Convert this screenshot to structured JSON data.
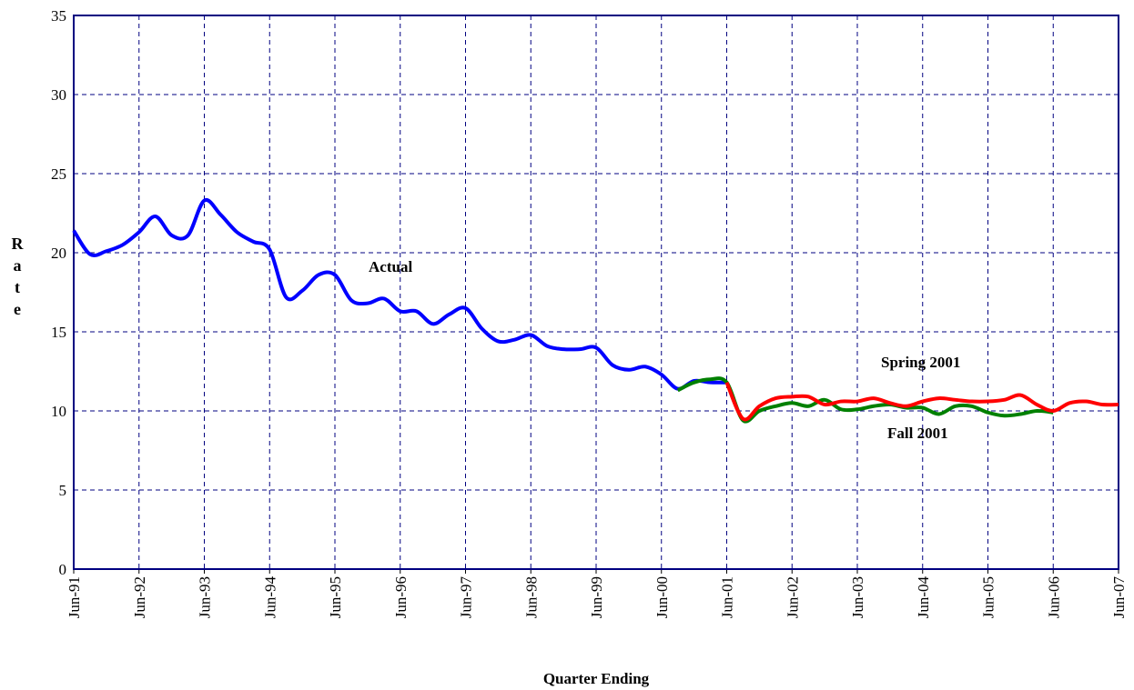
{
  "chart_data": {
    "type": "line",
    "xlabel": "Quarter Ending",
    "ylabel": "Rate",
    "categories": [
      "Jun-91",
      null,
      null,
      null,
      "Jun-92",
      null,
      null,
      null,
      "Jun-93",
      null,
      null,
      null,
      "Jun-94",
      null,
      null,
      null,
      "Jun-95",
      null,
      null,
      null,
      "Jun-96",
      null,
      null,
      null,
      "Jun-97",
      null,
      null,
      null,
      "Jun-98",
      null,
      null,
      null,
      "Jun-99",
      null,
      null,
      null,
      "Jun-00",
      null,
      null,
      null,
      "Jun-01",
      null,
      null,
      null,
      "Jun-02",
      null,
      null,
      null,
      "Jun-03",
      null,
      null,
      null,
      "Jun-04",
      null,
      null,
      null,
      "Jun-05",
      null,
      null,
      null,
      "Jun-06",
      null,
      null,
      null,
      "Jun-07"
    ],
    "series": [
      {
        "name": "Actual",
        "color": "#0000ff",
        "values": [
          21.4,
          19.9,
          20.1,
          20.5,
          21.3,
          22.3,
          21.1,
          21.1,
          23.3,
          22.4,
          21.3,
          20.7,
          20.2,
          17.2,
          17.6,
          18.6,
          18.6,
          17.0,
          16.8,
          17.1,
          16.3,
          16.3,
          15.5,
          16.1,
          16.5,
          15.2,
          14.4,
          14.5,
          14.8,
          14.1,
          13.9,
          13.9,
          14.0,
          12.9,
          12.6,
          12.8,
          12.3,
          11.4,
          11.9,
          11.8,
          11.8,
          null,
          null,
          null,
          null,
          null,
          null,
          null,
          null,
          null,
          null,
          null,
          null,
          null,
          null,
          null,
          null,
          null,
          null,
          null,
          null,
          null,
          null,
          null,
          null
        ]
      },
      {
        "name": "Spring 2001",
        "color": "#008000",
        "values": [
          null,
          null,
          null,
          null,
          null,
          null,
          null,
          null,
          null,
          null,
          null,
          null,
          null,
          null,
          null,
          null,
          null,
          null,
          null,
          null,
          null,
          null,
          null,
          null,
          null,
          null,
          null,
          null,
          null,
          null,
          null,
          null,
          null,
          null,
          null,
          null,
          null,
          11.3,
          11.8,
          12.0,
          11.8,
          9.4,
          10.0,
          10.3,
          10.5,
          10.3,
          10.7,
          10.1,
          10.1,
          10.3,
          10.4,
          10.2,
          10.2,
          9.8,
          10.3,
          10.3,
          9.9,
          9.7,
          9.8,
          10.0,
          9.9,
          null,
          null,
          null,
          null
        ]
      },
      {
        "name": "Fall 2001",
        "color": "#ff0000",
        "values": [
          null,
          null,
          null,
          null,
          null,
          null,
          null,
          null,
          null,
          null,
          null,
          null,
          null,
          null,
          null,
          null,
          null,
          null,
          null,
          null,
          null,
          null,
          null,
          null,
          null,
          null,
          null,
          null,
          null,
          null,
          null,
          null,
          null,
          null,
          null,
          null,
          null,
          null,
          null,
          null,
          11.8,
          9.5,
          10.3,
          10.8,
          10.9,
          10.9,
          10.4,
          10.6,
          10.6,
          10.8,
          10.5,
          10.3,
          10.6,
          10.8,
          10.7,
          10.6,
          10.6,
          10.7,
          11.0,
          10.4,
          10.0,
          10.5,
          10.6,
          10.4,
          10.4
        ]
      }
    ],
    "ylim": [
      0,
      35
    ],
    "yticks": [
      0,
      5,
      10,
      15,
      20,
      25,
      30,
      35
    ],
    "grid": true
  }
}
